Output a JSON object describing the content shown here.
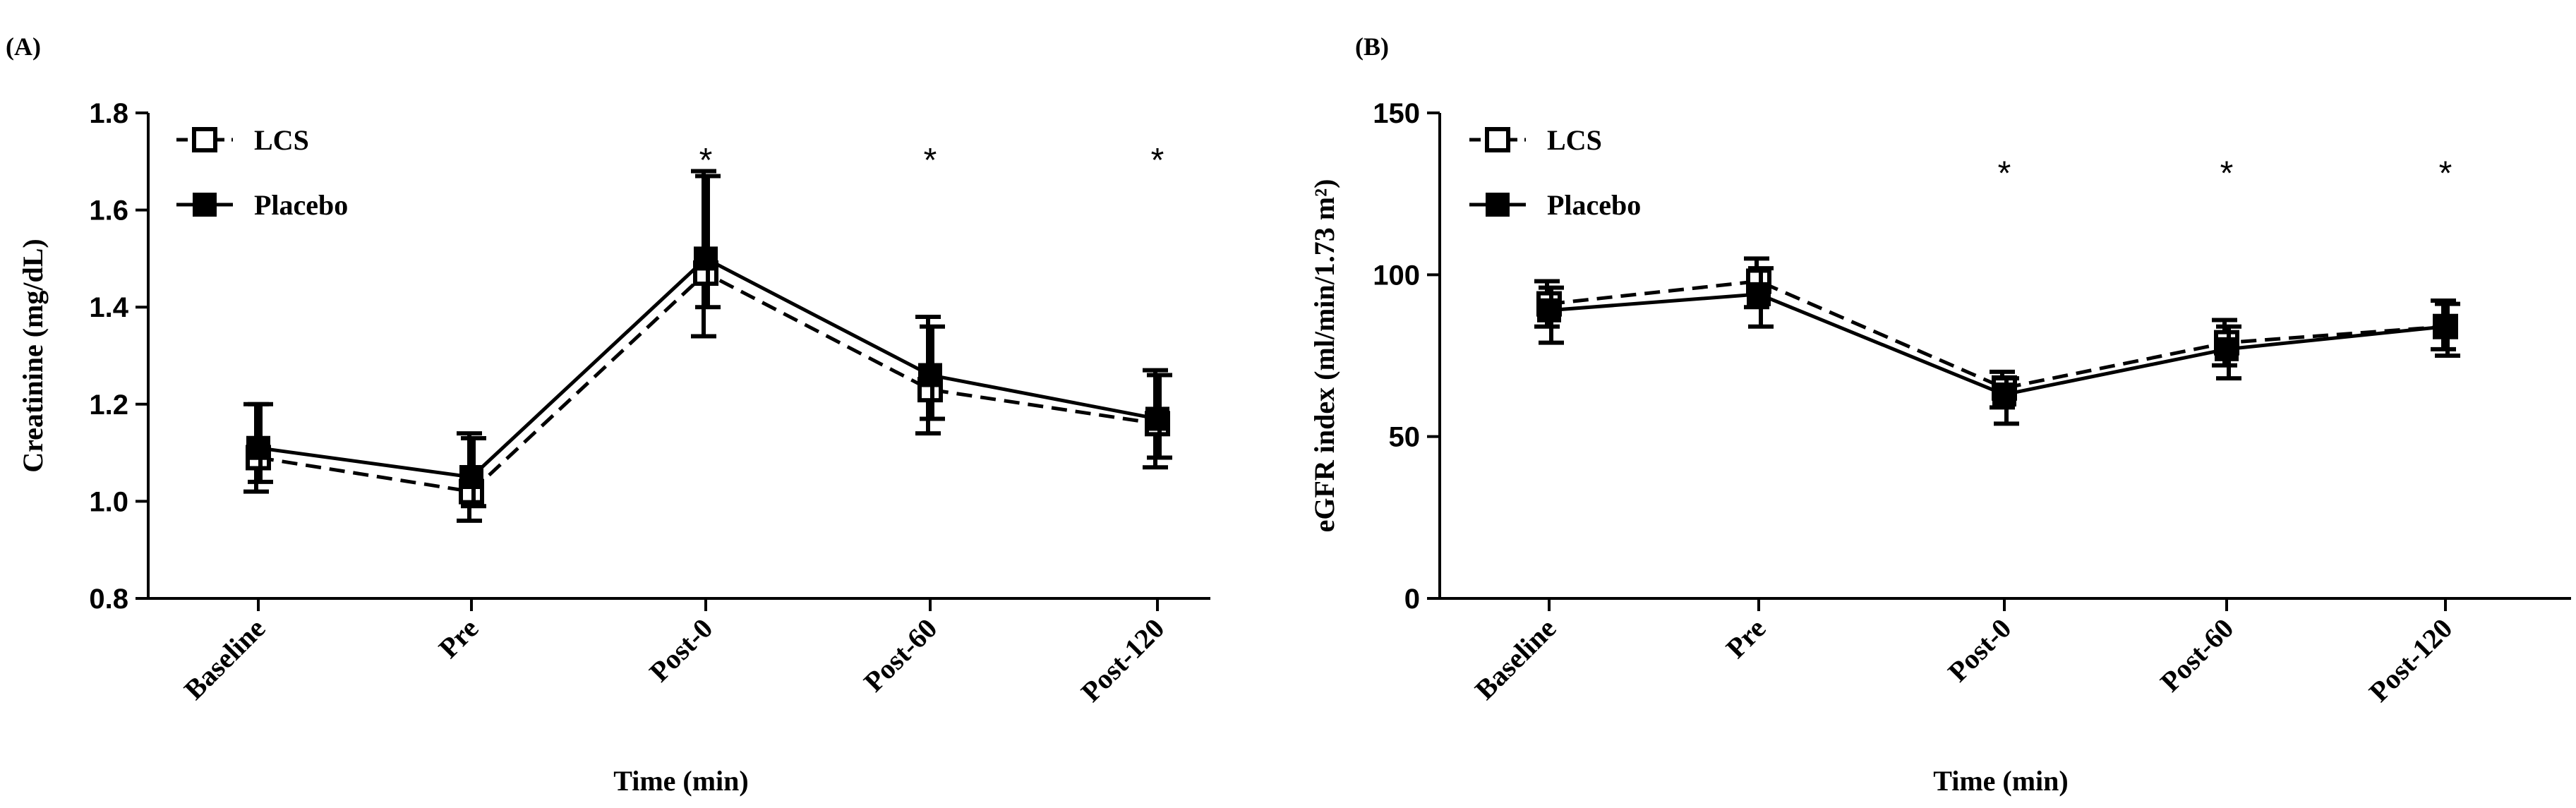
{
  "chart_data": [
    {
      "panel": "(A)",
      "type": "line",
      "categories": [
        "Baseline",
        "Pre",
        "Post-0",
        "Post-60",
        "Post-120"
      ],
      "xlabel": "Time (min)",
      "ylabel": "Creatinine (mg/dL)",
      "ylim": [
        0.8,
        1.8
      ],
      "yticks": [
        0.8,
        1.0,
        1.2,
        1.4,
        1.6,
        1.8
      ],
      "ytick_labels": [
        "0.8",
        "1.0",
        "1.2",
        "1.4",
        "1.6",
        "1.8"
      ],
      "series": [
        {
          "name": "LCS",
          "style": "dashed",
          "marker": "open-square",
          "values": [
            1.09,
            1.02,
            1.47,
            1.23,
            1.16
          ],
          "err_low": [
            1.02,
            0.96,
            1.34,
            1.14,
            1.07
          ],
          "err_high": [
            1.2,
            1.14,
            1.68,
            1.38,
            1.27
          ]
        },
        {
          "name": "Placebo",
          "style": "solid",
          "marker": "filled-square",
          "values": [
            1.11,
            1.05,
            1.5,
            1.26,
            1.17
          ],
          "err_low": [
            1.04,
            0.99,
            1.4,
            1.17,
            1.09
          ],
          "err_high": [
            1.2,
            1.13,
            1.67,
            1.36,
            1.26
          ]
        }
      ],
      "significance": [
        {
          "category": "Post-0",
          "value": 1.72,
          "label": "*"
        },
        {
          "category": "Post-60",
          "value": 1.72,
          "label": "*"
        },
        {
          "category": "Post-120",
          "value": 1.72,
          "label": "*"
        }
      ]
    },
    {
      "panel": "(B)",
      "type": "line",
      "categories": [
        "Baseline",
        "Pre",
        "Post-0",
        "Post-60",
        "Post-120"
      ],
      "xlabel": "Time (min)",
      "ylabel": "eGFR index (ml/min/1.73 m²)",
      "ylim": [
        0,
        150
      ],
      "yticks": [
        0,
        50,
        100,
        150
      ],
      "ytick_labels": [
        "0",
        "50",
        "100",
        "150"
      ],
      "series": [
        {
          "name": "LCS",
          "style": "dashed",
          "marker": "open-square",
          "values": [
            91,
            98,
            65,
            79,
            84
          ],
          "err_low": [
            84,
            90,
            59,
            72,
            77
          ],
          "err_high": [
            98,
            105,
            70,
            86,
            92
          ]
        },
        {
          "name": "Placebo",
          "style": "solid",
          "marker": "filled-square",
          "values": [
            89,
            94,
            63,
            77,
            84
          ],
          "err_low": [
            79,
            84,
            54,
            68,
            75
          ],
          "err_high": [
            96,
            102,
            68,
            84,
            91
          ]
        }
      ],
      "significance": [
        {
          "category": "Post-0",
          "value": 134,
          "label": "*"
        },
        {
          "category": "Post-60",
          "value": 134,
          "label": "*"
        },
        {
          "category": "Post-120",
          "value": 134,
          "label": "*"
        }
      ]
    }
  ]
}
